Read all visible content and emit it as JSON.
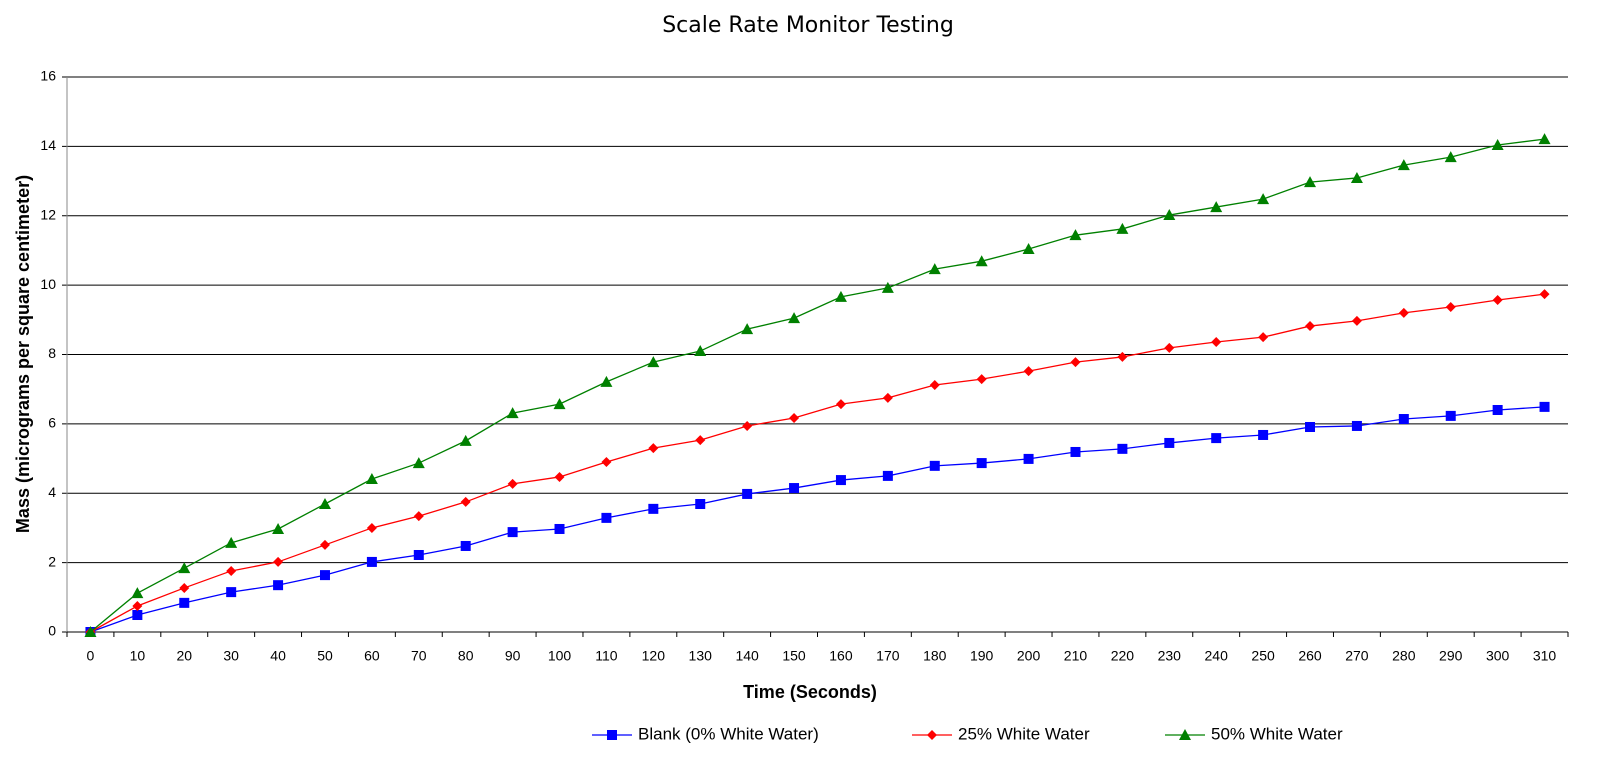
{
  "chart_data": {
    "type": "line",
    "title": "Scale Rate Monitor Testing",
    "x_label": "Time (Seconds)",
    "y_label": "Mass (micrograms per square centimeter)",
    "categories": [
      "0",
      "10",
      "20",
      "30",
      "40",
      "50",
      "60",
      "70",
      "80",
      "90",
      "100",
      "110",
      "120",
      "130",
      "140",
      "150",
      "160",
      "170",
      "180",
      "190",
      "200",
      "210",
      "220",
      "230",
      "240",
      "250",
      "260",
      "270",
      "280",
      "290",
      "300",
      "310"
    ],
    "ylim": [
      0,
      16
    ],
    "yticks": [
      0,
      2,
      4,
      6,
      8,
      10,
      12,
      14,
      16
    ],
    "grid": true,
    "legend": "bottom",
    "series": [
      {
        "name": "Blank (0% White Water)",
        "color": "#0000ff",
        "marker": "square",
        "values": [
          0,
          0.49,
          0.84,
          1.15,
          1.35,
          1.64,
          2.02,
          2.22,
          2.48,
          2.88,
          2.97,
          3.29,
          3.55,
          3.69,
          3.98,
          4.15,
          4.38,
          4.5,
          4.79,
          4.87,
          4.99,
          5.19,
          5.28,
          5.45,
          5.59,
          5.68,
          5.91,
          5.94,
          6.14,
          6.23,
          6.4,
          6.49
        ]
      },
      {
        "name": "25% White Water",
        "color": "#ff0000",
        "marker": "diamond",
        "values": [
          0,
          0.75,
          1.27,
          1.76,
          2.02,
          2.51,
          3.0,
          3.34,
          3.75,
          4.27,
          4.47,
          4.9,
          5.3,
          5.53,
          5.94,
          6.17,
          6.57,
          6.75,
          7.12,
          7.29,
          7.52,
          7.78,
          7.93,
          8.19,
          8.36,
          8.5,
          8.82,
          8.97,
          9.2,
          9.37,
          9.57,
          9.74
        ]
      },
      {
        "name": "50% White Water",
        "color": "#008000",
        "marker": "triangle",
        "values": [
          0,
          1.12,
          1.84,
          2.57,
          2.97,
          3.69,
          4.41,
          4.87,
          5.51,
          6.31,
          6.57,
          7.21,
          7.78,
          8.1,
          8.73,
          9.05,
          9.66,
          9.92,
          10.46,
          10.69,
          11.04,
          11.44,
          11.62,
          12.02,
          12.25,
          12.48,
          12.97,
          13.09,
          13.46,
          13.69,
          14.04,
          14.21
        ]
      }
    ]
  }
}
